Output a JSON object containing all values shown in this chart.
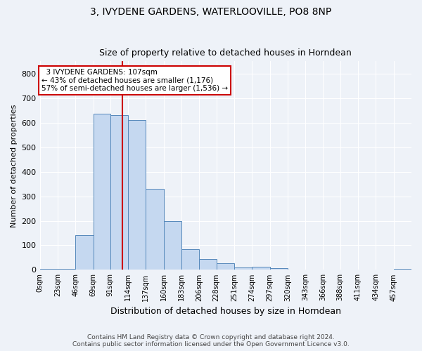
{
  "title": "3, IVYDENE GARDENS, WATERLOOVILLE, PO8 8NP",
  "subtitle": "Size of property relative to detached houses in Horndean",
  "xlabel": "Distribution of detached houses by size in Horndean",
  "ylabel": "Number of detached properties",
  "footnote1": "Contains HM Land Registry data © Crown copyright and database right 2024.",
  "footnote2": "Contains public sector information licensed under the Open Government Licence v3.0.",
  "bin_labels": [
    "0sqm",
    "23sqm",
    "46sqm",
    "69sqm",
    "91sqm",
    "114sqm",
    "137sqm",
    "160sqm",
    "183sqm",
    "206sqm",
    "228sqm",
    "251sqm",
    "274sqm",
    "297sqm",
    "320sqm",
    "343sqm",
    "366sqm",
    "388sqm",
    "411sqm",
    "434sqm",
    "457sqm"
  ],
  "bin_edges": [
    0,
    23,
    46,
    69,
    91,
    114,
    137,
    160,
    183,
    206,
    228,
    251,
    274,
    297,
    320,
    343,
    366,
    388,
    411,
    434,
    457,
    480
  ],
  "bar_values": [
    5,
    5,
    140,
    635,
    630,
    610,
    330,
    200,
    85,
    45,
    27,
    10,
    12,
    7,
    0,
    0,
    0,
    0,
    0,
    0,
    5
  ],
  "bar_facecolor": "#c5d8f0",
  "bar_edgecolor": "#5588bb",
  "property_value": 107,
  "property_label": "3 IVYDENE GARDENS: 107sqm",
  "pct_smaller": 43,
  "n_smaller": 1176,
  "pct_larger": 57,
  "n_larger": 1536,
  "vline_color": "#cc0000",
  "annotation_box_edgecolor": "#cc0000",
  "background_color": "#eef2f8",
  "grid_color": "#ffffff",
  "ylim": [
    0,
    850
  ],
  "yticks": [
    0,
    100,
    200,
    300,
    400,
    500,
    600,
    700,
    800
  ]
}
